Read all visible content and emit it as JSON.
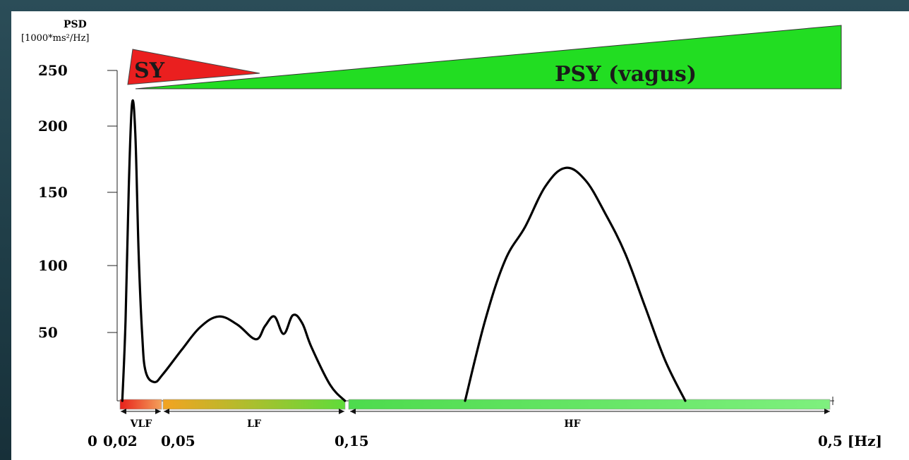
{
  "chart_data": {
    "type": "line",
    "title": "",
    "ylabel": "PSD",
    "ylabel_unit": "[1000*ms²/Hz]",
    "xlabel": "[Hz]",
    "y_ticks": [
      50,
      100,
      150,
      200,
      250
    ],
    "x_tick_labels": [
      "0",
      "0,02",
      "0,05",
      "0,15",
      "0,5 [Hz]"
    ],
    "x_tick_values": [
      0,
      0.02,
      0.05,
      0.15,
      0.5
    ],
    "ylim": [
      0,
      260
    ],
    "grid": false,
    "series": [
      {
        "name": "",
        "color": "#000000",
        "x": [
          0.002,
          0.006,
          0.01,
          0.014,
          0.018,
          0.022,
          0.026,
          0.03,
          0.04,
          0.05,
          0.06,
          0.07,
          0.08,
          0.09,
          0.1,
          0.105,
          0.11,
          0.115,
          0.12,
          0.125,
          0.13,
          0.14,
          0.148
        ],
        "y": [
          0,
          60,
          160,
          222,
          200,
          110,
          50,
          22,
          14,
          20,
          38,
          55,
          63,
          57,
          46,
          56,
          63,
          50,
          64,
          58,
          40,
          12,
          0
        ]
      },
      {
        "name": "",
        "color": "#000000",
        "x": [
          0.245,
          0.26,
          0.275,
          0.29,
          0.305,
          0.32,
          0.335,
          0.35,
          0.365,
          0.38,
          0.395,
          0.41
        ],
        "y": [
          0,
          60,
          105,
          130,
          160,
          174,
          165,
          140,
          110,
          70,
          30,
          0
        ]
      }
    ],
    "bands": [
      {
        "label": "VLF",
        "x_start": 0,
        "x_end": 0.04,
        "colors": [
          "#e8201a",
          "#f3a15a"
        ]
      },
      {
        "label": "LF",
        "x_start": 0.04,
        "x_end": 0.15,
        "colors": [
          "#f3a321",
          "#5fdc3a"
        ]
      },
      {
        "label": "HF",
        "x_start": 0.15,
        "x_end": 0.5,
        "colors": [
          "#4ddb4d",
          "#7ef07e"
        ]
      }
    ],
    "wedges": [
      {
        "label": "SY",
        "color": "#ea1f1f"
      },
      {
        "label": "PSY (vagus)",
        "color": "#22dd22"
      }
    ]
  }
}
